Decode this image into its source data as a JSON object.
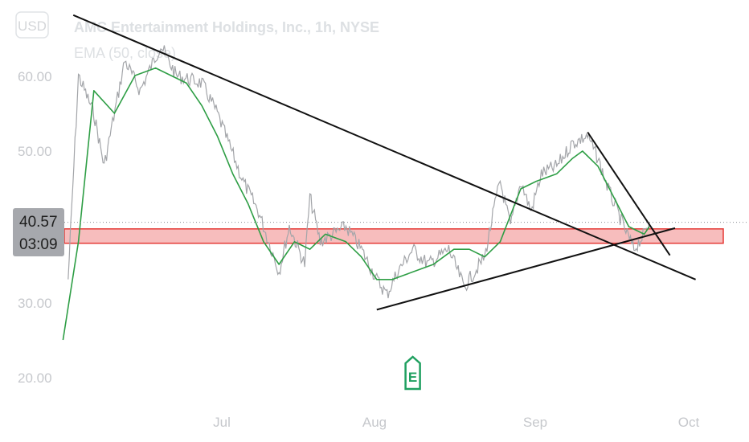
{
  "chart_data": {
    "type": "line",
    "title": "AMC Entertainment Holdings, Inc., 1h, NYSE",
    "indicator": "EMA (50, close)",
    "currency_label": "USD",
    "y_ticks": [
      "60.00",
      "50.00",
      "30.00",
      "20.00"
    ],
    "x_ticks": [
      "Jul",
      "Aug",
      "Sep",
      "Oct"
    ],
    "ylim": [
      18,
      70
    ],
    "price_tag": {
      "value": "40.57",
      "time": "03:09"
    },
    "earnings_marker": "E",
    "support_zone": {
      "low": 37.8,
      "high": 39.7
    },
    "colors": {
      "price": "#a3a5a9",
      "ema": "#2e9e45",
      "trendline": "#111111",
      "zone_fill": "#f4a7a7",
      "zone_border": "#e53935",
      "earnings": "#20a060"
    },
    "series": [
      {
        "name": "price",
        "x": [
          "2021-06-03",
          "2021-06-05",
          "2021-06-08",
          "2021-06-10",
          "2021-06-14",
          "2021-06-17",
          "2021-06-21",
          "2021-06-24",
          "2021-06-29",
          "2021-07-02",
          "2021-07-07",
          "2021-07-10",
          "2021-07-14",
          "2021-07-16",
          "2021-07-19",
          "2021-07-20",
          "2021-07-22",
          "2021-07-27",
          "2021-07-30",
          "2021-08-02",
          "2021-08-04",
          "2021-08-06",
          "2021-08-09",
          "2021-08-12",
          "2021-08-16",
          "2021-08-19",
          "2021-08-23",
          "2021-08-25",
          "2021-08-26",
          "2021-08-28",
          "2021-08-30",
          "2021-09-01",
          "2021-09-03",
          "2021-09-06",
          "2021-09-09",
          "2021-09-12",
          "2021-09-14",
          "2021-09-16",
          "2021-09-19",
          "2021-09-21",
          "2021-09-23",
          "2021-09-24"
        ],
        "values": [
          33,
          60,
          55,
          48,
          62,
          58,
          64,
          60,
          59,
          55,
          46,
          42,
          34,
          40,
          35,
          44,
          38,
          40,
          37,
          33,
          31,
          34,
          37,
          35,
          37,
          32,
          36,
          43,
          46,
          40,
          46,
          42,
          47,
          48,
          51,
          52,
          49,
          45,
          40,
          37,
          39,
          40.57
        ]
      },
      {
        "name": "EMA (50, close)",
        "x": [
          "2021-06-02",
          "2021-06-05",
          "2021-06-08",
          "2021-06-12",
          "2021-06-16",
          "2021-06-20",
          "2021-06-23",
          "2021-06-26",
          "2021-06-29",
          "2021-07-02",
          "2021-07-05",
          "2021-07-08",
          "2021-07-11",
          "2021-07-14",
          "2021-07-17",
          "2021-07-20",
          "2021-07-23",
          "2021-07-27",
          "2021-07-30",
          "2021-08-02",
          "2021-08-05",
          "2021-08-09",
          "2021-08-13",
          "2021-08-17",
          "2021-08-20",
          "2021-08-23",
          "2021-08-26",
          "2021-08-30",
          "2021-09-02",
          "2021-09-06",
          "2021-09-09",
          "2021-09-11",
          "2021-09-14",
          "2021-09-17",
          "2021-09-20",
          "2021-09-23",
          "2021-09-24"
        ],
        "values": [
          25,
          38,
          58,
          55,
          60,
          61,
          60,
          59,
          56,
          52,
          47,
          43,
          38,
          35,
          38,
          37,
          39,
          38,
          36,
          33,
          33,
          34,
          35,
          37,
          37,
          36,
          38,
          45,
          46,
          47,
          49,
          50,
          48,
          44,
          40,
          39,
          40
        ]
      }
    ],
    "trendlines": [
      {
        "x1": "2021-06-04",
        "y1": 68,
        "x2": "2021-10-03",
        "y2": 33.0
      },
      {
        "x1": "2021-08-02",
        "y1": 29.0,
        "x2": "2021-09-29",
        "y2": 39.8
      },
      {
        "x1": "2021-09-12",
        "y1": 52.5,
        "x2": "2021-09-28",
        "y2": 36.2
      }
    ]
  }
}
